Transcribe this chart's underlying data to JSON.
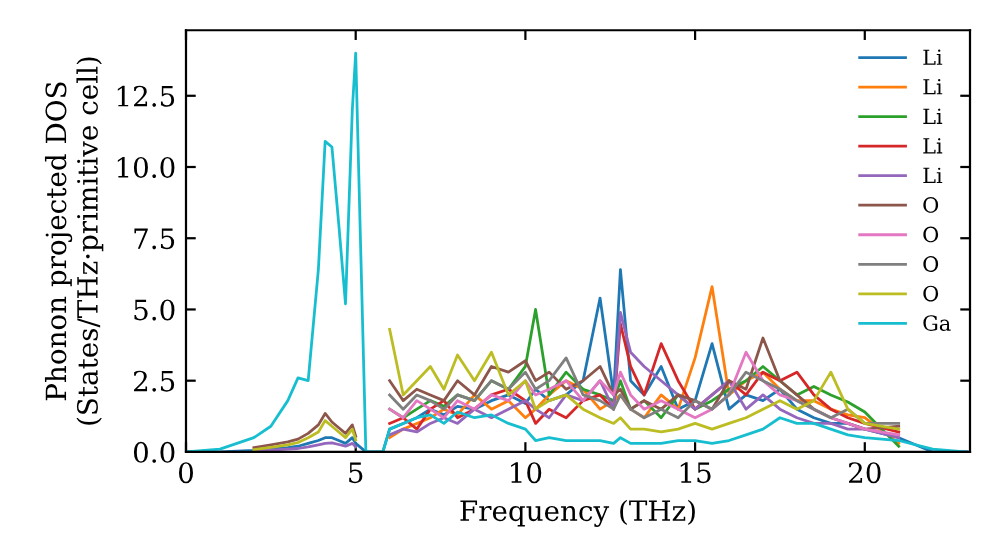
{
  "chart_data": {
    "type": "line",
    "xlabel": "Frequency (THz)",
    "ylabel": "Phonon projected DOS\n(States/THz·primitive cell)",
    "x": [
      0,
      1,
      2,
      2.5,
      3,
      3.3,
      3.6,
      3.9,
      4.1,
      4.3,
      4.5,
      4.7,
      4.9,
      5.0,
      5.3,
      5.8,
      6.0,
      6.4,
      6.8,
      7.2,
      7.6,
      8.0,
      8.5,
      9.0,
      9.5,
      10.0,
      10.3,
      10.7,
      11.2,
      11.7,
      12.2,
      12.6,
      12.8,
      13.1,
      13.5,
      14.0,
      14.5,
      15.0,
      15.5,
      16.0,
      16.5,
      17.0,
      17.5,
      18.0,
      18.5,
      19.0,
      19.5,
      20.0,
      21.0,
      22.0,
      23.0
    ],
    "series": [
      {
        "name": "Li",
        "color": "#1f77b4",
        "values": [
          0,
          0,
          0.05,
          0.1,
          0.15,
          0.2,
          0.3,
          0.4,
          0.5,
          0.5,
          0.4,
          0.3,
          0.5,
          0.3,
          0,
          0,
          0.8,
          1.0,
          1.2,
          1.5,
          1.3,
          1.6,
          1.5,
          1.8,
          2.0,
          1.7,
          2.2,
          1.8,
          2.0,
          2.5,
          5.4,
          2.0,
          6.4,
          2.5,
          2.0,
          3.0,
          1.5,
          1.8,
          3.8,
          1.5,
          2.0,
          1.8,
          2.2,
          1.5,
          1.2,
          1.0,
          1.0,
          0.8,
          0.5,
          0,
          0
        ]
      },
      {
        "name": "Li",
        "color": "#ff7f0e",
        "values": [
          null,
          null,
          null,
          null,
          null,
          null,
          null,
          null,
          null,
          null,
          null,
          null,
          null,
          null,
          null,
          null,
          0.5,
          0.8,
          1.0,
          1.2,
          1.5,
          1.3,
          2.0,
          1.5,
          1.8,
          1.2,
          1.5,
          2.0,
          2.5,
          2.2,
          1.5,
          1.8,
          2.0,
          1.5,
          1.2,
          2.0,
          1.5,
          3.3,
          5.8,
          2.0,
          2.5,
          2.8,
          2.2,
          1.8,
          1.8,
          1.5,
          1.3,
          1.2,
          0.3,
          null,
          null
        ]
      },
      {
        "name": "Li",
        "color": "#2ca02c",
        "values": [
          null,
          null,
          null,
          null,
          null,
          null,
          null,
          null,
          null,
          null,
          null,
          null,
          null,
          null,
          null,
          null,
          1.5,
          1.2,
          1.5,
          1.8,
          1.6,
          2.0,
          1.8,
          2.5,
          2.2,
          3.0,
          5.0,
          2.0,
          2.8,
          2.2,
          2.0,
          1.8,
          2.5,
          1.5,
          1.8,
          1.2,
          2.0,
          1.5,
          1.8,
          2.2,
          2.5,
          3.0,
          2.5,
          2.0,
          2.3,
          2.0,
          1.75,
          1.4,
          0.2,
          null,
          null
        ]
      },
      {
        "name": "Li",
        "color": "#d62728",
        "values": [
          null,
          null,
          null,
          null,
          null,
          null,
          null,
          null,
          null,
          null,
          null,
          null,
          null,
          null,
          null,
          null,
          1.0,
          1.2,
          0.8,
          1.5,
          1.8,
          1.2,
          1.5,
          2.0,
          2.2,
          1.8,
          1.0,
          1.5,
          1.2,
          1.8,
          2.0,
          1.5,
          4.5,
          3.0,
          2.0,
          3.8,
          2.5,
          1.5,
          2.0,
          2.5,
          2.0,
          2.8,
          2.5,
          2.8,
          2.0,
          1.5,
          1.2,
          1.0,
          0.7,
          null,
          null
        ]
      },
      {
        "name": "Li",
        "color": "#9467bd",
        "values": [
          null,
          null,
          0.03,
          0.06,
          0.1,
          0.12,
          0.18,
          0.25,
          0.3,
          0.32,
          0.26,
          0.2,
          0.3,
          0.18,
          null,
          null,
          0.6,
          0.8,
          0.7,
          1.0,
          1.2,
          1.0,
          1.5,
          1.2,
          1.5,
          1.8,
          1.5,
          1.2,
          2.0,
          1.8,
          2.5,
          1.5,
          4.9,
          3.5,
          3.0,
          2.5,
          2.0,
          1.5,
          2.0,
          2.5,
          1.5,
          2.0,
          1.5,
          1.2,
          1.0,
          1.0,
          0.8,
          0.8,
          0.5,
          null,
          null
        ]
      },
      {
        "name": "O",
        "color": "#8c564b",
        "values": [
          null,
          null,
          0.15,
          0.25,
          0.35,
          0.45,
          0.65,
          0.95,
          1.35,
          1.05,
          0.85,
          0.65,
          0.95,
          0.55,
          null,
          null,
          2.5,
          1.8,
          2.2,
          2.0,
          1.8,
          2.5,
          2.0,
          3.0,
          2.8,
          3.2,
          2.5,
          2.8,
          2.2,
          2.5,
          3.0,
          2.0,
          2.2,
          1.5,
          1.8,
          1.5,
          2.0,
          1.8,
          1.5,
          2.5,
          2.2,
          4.0,
          2.5,
          2.0,
          1.5,
          1.2,
          1.0,
          0.8,
          0.9,
          null,
          null
        ]
      },
      {
        "name": "O",
        "color": "#e377c2",
        "values": [
          null,
          null,
          null,
          null,
          null,
          null,
          null,
          null,
          null,
          null,
          null,
          null,
          null,
          null,
          null,
          null,
          1.5,
          1.2,
          1.8,
          1.5,
          1.2,
          1.8,
          1.5,
          2.0,
          1.8,
          2.5,
          2.0,
          2.2,
          2.5,
          1.8,
          2.5,
          2.0,
          2.8,
          2.0,
          1.5,
          1.8,
          1.5,
          1.2,
          1.5,
          2.0,
          3.5,
          2.5,
          2.0,
          1.8,
          1.5,
          1.2,
          1.0,
          0.8,
          0.6,
          null,
          null
        ]
      },
      {
        "name": "O",
        "color": "#7f7f7f",
        "values": [
          null,
          null,
          null,
          null,
          null,
          null,
          null,
          null,
          null,
          null,
          null,
          null,
          null,
          null,
          null,
          null,
          2.0,
          1.5,
          2.0,
          1.8,
          1.5,
          2.0,
          1.8,
          2.5,
          2.2,
          2.8,
          2.2,
          2.5,
          3.3,
          2.0,
          1.8,
          1.5,
          2.0,
          1.5,
          1.2,
          1.5,
          1.2,
          1.8,
          1.5,
          2.0,
          2.8,
          2.5,
          2.2,
          1.8,
          1.5,
          1.2,
          1.5,
          1.0,
          1.0,
          null,
          null
        ]
      },
      {
        "name": "O",
        "color": "#bcbd22",
        "values": [
          null,
          null,
          0.08,
          0.16,
          0.25,
          0.33,
          0.5,
          0.7,
          1.1,
          0.9,
          0.7,
          0.5,
          0.8,
          0.42,
          null,
          null,
          4.3,
          2.0,
          2.5,
          3.0,
          2.2,
          3.4,
          2.5,
          3.5,
          2.0,
          2.5,
          1.5,
          1.8,
          2.0,
          1.5,
          1.2,
          1.0,
          1.2,
          0.8,
          0.8,
          0.7,
          0.8,
          1.0,
          0.8,
          1.0,
          1.2,
          1.5,
          1.8,
          1.5,
          1.8,
          2.8,
          1.5,
          1.0,
          0.8,
          null,
          null
        ]
      },
      {
        "name": "Ga",
        "color": "#17becf",
        "values": [
          0,
          0.1,
          0.5,
          0.9,
          1.8,
          2.6,
          2.5,
          6.4,
          10.9,
          10.7,
          8.0,
          5.2,
          12.0,
          14.0,
          0,
          0,
          0.8,
          1.0,
          1.2,
          1.3,
          1.0,
          1.4,
          1.2,
          1.3,
          1.0,
          0.8,
          0.4,
          0.5,
          0.4,
          0.4,
          0.4,
          0.3,
          0.5,
          0.3,
          0.3,
          0.3,
          0.4,
          0.4,
          0.3,
          0.4,
          0.6,
          0.8,
          1.2,
          1.0,
          1.0,
          0.8,
          0.6,
          0.5,
          0.4,
          0.1,
          0
        ]
      }
    ],
    "xlim": [
      0,
      23.1
    ],
    "ylim": [
      0,
      14.8
    ],
    "xticks": [
      0,
      5,
      10,
      15,
      20
    ],
    "yticks": [
      {
        "value": 0,
        "label": "0.0"
      },
      {
        "value": 2.5,
        "label": "2.5"
      },
      {
        "value": 5,
        "label": "5.0"
      },
      {
        "value": 7.5,
        "label": "7.5"
      },
      {
        "value": 10,
        "label": "10.0"
      },
      {
        "value": 12.5,
        "label": "12.5"
      }
    ],
    "legend": "top right",
    "grid": false,
    "marker": "none",
    "line_style": "solid"
  }
}
